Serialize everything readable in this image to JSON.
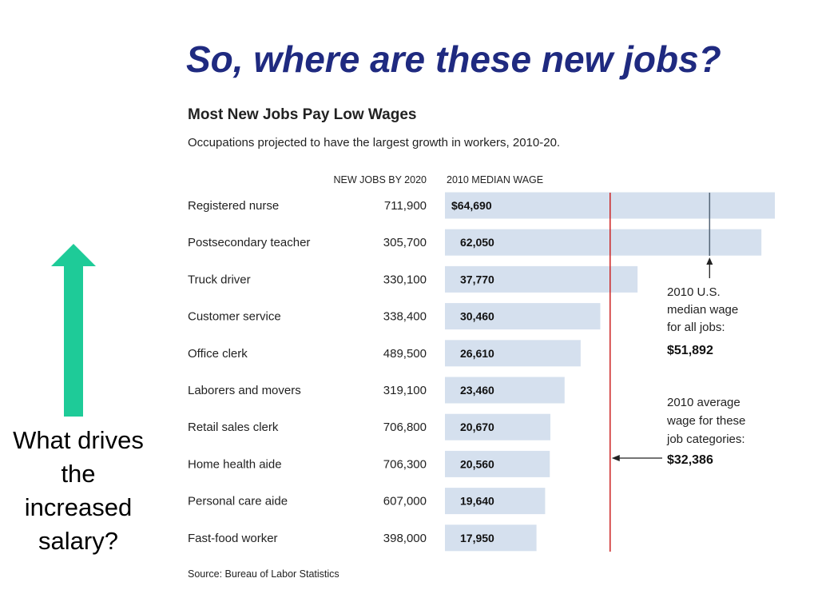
{
  "slide": {
    "title": "So, where are these new jobs?",
    "caption": "What drives the increased salary?",
    "arrow_color": "#1ecb98",
    "title_color": "#1f2a80"
  },
  "chart_data": {
    "type": "bar",
    "title": "Most New Jobs Pay Low Wages",
    "subtitle": "Occupations projected to have the largest growth in workers, 2010-20.",
    "column_headers": {
      "new_jobs": "NEW JOBS BY 2020",
      "wage": "2010 MEDIAN WAGE"
    },
    "categories": [
      "Registered nurse",
      "Postsecondary teacher",
      "Truck driver",
      "Customer service",
      "Office clerk",
      "Laborers and movers",
      "Retail sales clerk",
      "Home health aide",
      "Personal care aide",
      "Fast-food worker"
    ],
    "new_jobs_labels": [
      "711,900",
      "305,700",
      "330,100",
      "338,400",
      "489,500",
      "319,100",
      "706,800",
      "706,300",
      "607,000",
      "398,000"
    ],
    "new_jobs": [
      711900,
      305700,
      330100,
      338400,
      489500,
      319100,
      706800,
      706300,
      607000,
      398000
    ],
    "wage_labels": [
      "$64,690",
      "62,050",
      "37,770",
      "30,460",
      "26,610",
      "23,460",
      "20,670",
      "20,560",
      "19,640",
      "17,950"
    ],
    "values": [
      64690,
      62050,
      37770,
      30460,
      26610,
      23460,
      20670,
      20560,
      19640,
      17950
    ],
    "reference_lines": [
      {
        "value": 51892,
        "color": "#556677",
        "label_lines": [
          "2010 U.S.",
          "median wage",
          "for all jobs:"
        ],
        "value_label": "$51,892"
      },
      {
        "value": 32386,
        "color": "#cc2222",
        "label_lines": [
          "2010 average",
          "wage for these",
          "job categories:"
        ],
        "value_label": "$32,386"
      }
    ],
    "bar_color": "#d5e0ee",
    "source": "Source: Bureau of Labor Statistics"
  }
}
